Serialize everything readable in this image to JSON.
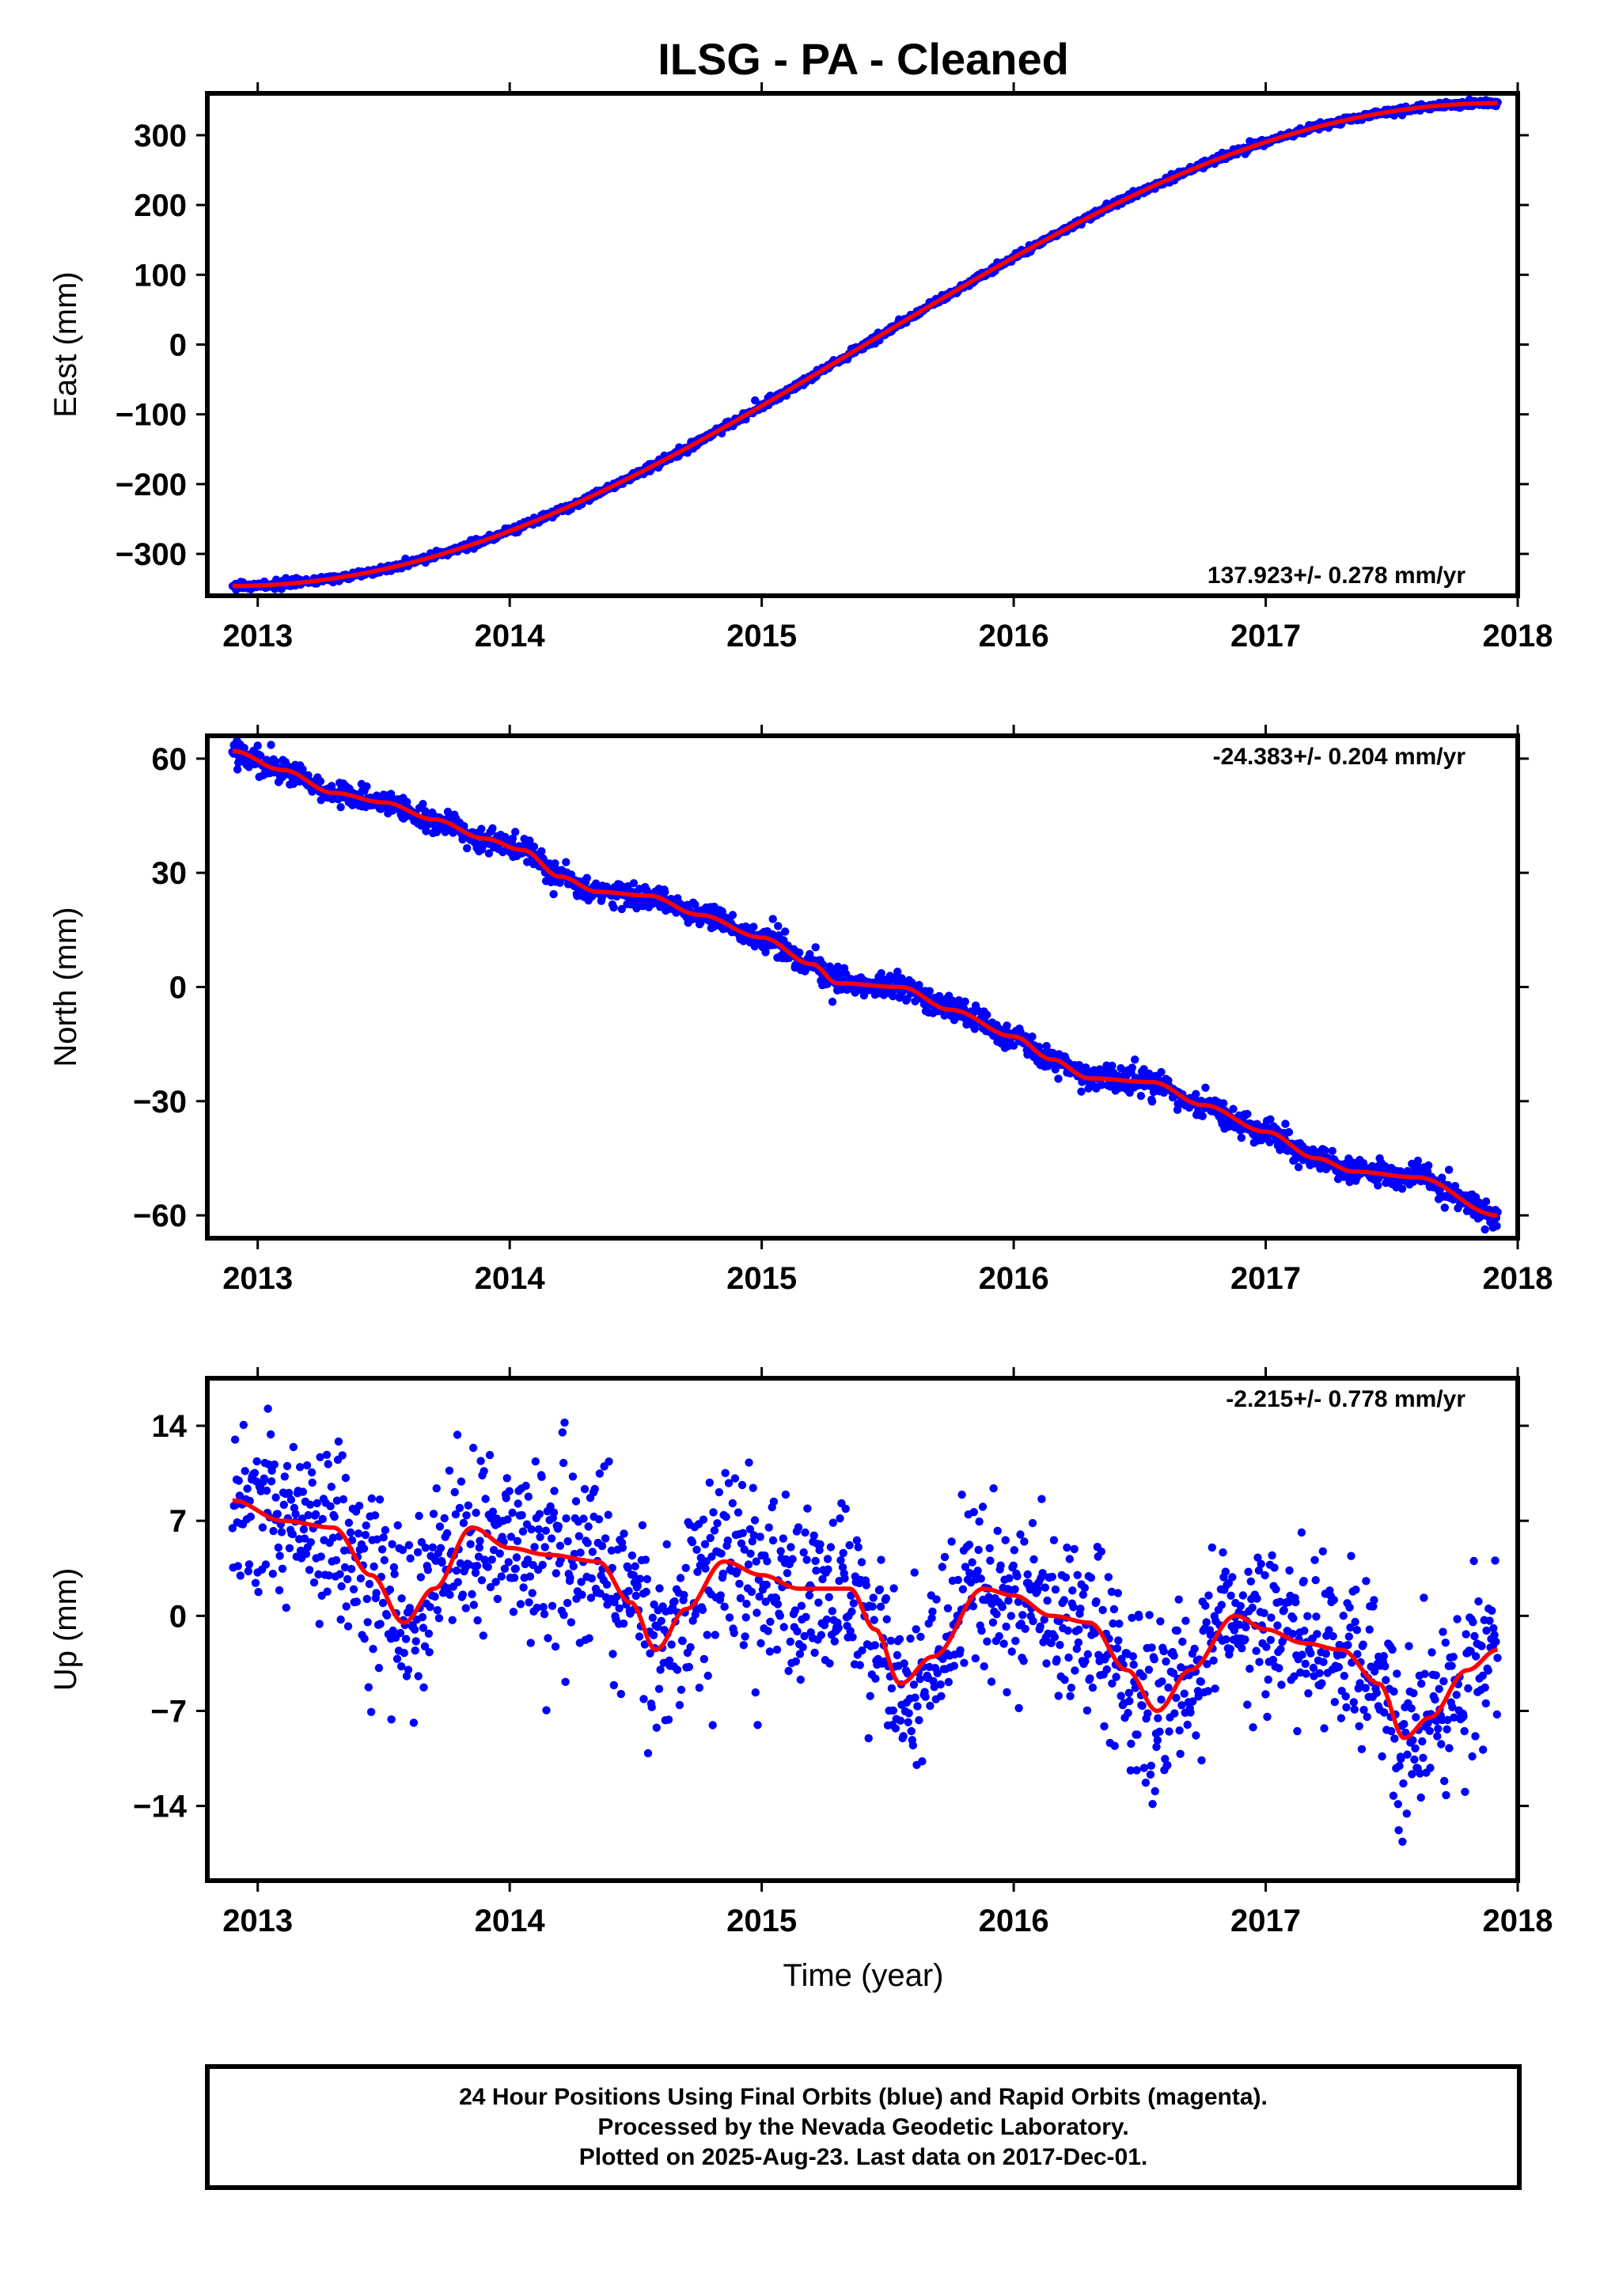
{
  "figure": {
    "title": "ILSG  - PA - Cleaned",
    "time_label": "Time (year)",
    "footer": [
      "24 Hour Positions Using Final Orbits (blue) and Rapid Orbits (magenta).",
      "Processed by the Nevada Geodetic Laboratory.",
      "Plotted on 2025-Aug-23. Last data on 2017-Dec-01."
    ],
    "colors": {
      "points": "#0000ff",
      "fit": "#ff0000",
      "frame": "#000000"
    }
  },
  "chart_data": [
    {
      "type": "scatter",
      "ylabel": "East (mm)",
      "rate_text": "137.923+/- 0.278 mm/yr",
      "xlim": [
        2012.8,
        2018.0
      ],
      "ylim": [
        -360,
        360
      ],
      "x_ticks": [
        2013,
        2014,
        2015,
        2016,
        2017,
        2018
      ],
      "y_ticks": [
        300,
        200,
        100,
        0,
        -100,
        -200,
        -300
      ],
      "y_tick_labels": [
        "300",
        "200",
        "100",
        "0",
        "−100",
        "−200",
        "−300"
      ],
      "series": [
        {
          "kind": "points",
          "x_start": 2012.9,
          "x_end": 2017.92,
          "count": 1700,
          "trend": [
            [
              2012.9,
              -346
            ],
            [
              2017.92,
              346
            ]
          ],
          "scatter_sd": 2.5
        },
        {
          "kind": "fit",
          "points": [
            [
              2012.9,
              -346
            ],
            [
              2017.92,
              346
            ]
          ]
        }
      ]
    },
    {
      "type": "scatter",
      "ylabel": "North (mm)",
      "rate_text": "-24.383+/- 0.204 mm/yr",
      "xlim": [
        2012.8,
        2018.0
      ],
      "ylim": [
        -66,
        66
      ],
      "x_ticks": [
        2013,
        2014,
        2015,
        2016,
        2017,
        2018
      ],
      "y_ticks": [
        60,
        30,
        0,
        -30,
        -60
      ],
      "y_tick_labels": [
        "60",
        "30",
        "0",
        "−30",
        "−60"
      ],
      "series": [
        {
          "kind": "points",
          "x_start": 2012.9,
          "x_end": 2017.92,
          "count": 1700,
          "trend": [
            [
              2012.9,
              62
            ],
            [
              2013.1,
              57
            ],
            [
              2013.3,
              51
            ],
            [
              2013.5,
              48.5
            ],
            [
              2013.7,
              44
            ],
            [
              2013.9,
              39
            ],
            [
              2014.05,
              36
            ],
            [
              2014.2,
              29
            ],
            [
              2014.35,
              25
            ],
            [
              2014.55,
              24
            ],
            [
              2014.75,
              19
            ],
            [
              2015.0,
              13
            ],
            [
              2015.2,
              6
            ],
            [
              2015.3,
              1
            ],
            [
              2015.55,
              0
            ],
            [
              2015.75,
              -6
            ],
            [
              2016.0,
              -13
            ],
            [
              2016.15,
              -19
            ],
            [
              2016.3,
              -24
            ],
            [
              2016.55,
              -25
            ],
            [
              2016.75,
              -31
            ],
            [
              2017.0,
              -38
            ],
            [
              2017.2,
              -45
            ],
            [
              2017.35,
              -48.5
            ],
            [
              2017.6,
              -50
            ],
            [
              2017.92,
              -60
            ]
          ],
          "scatter_sd": 1.6
        },
        {
          "kind": "fit",
          "points": [
            [
              2012.9,
              62
            ],
            [
              2013.1,
              57
            ],
            [
              2013.3,
              51
            ],
            [
              2013.5,
              48.5
            ],
            [
              2013.7,
              44
            ],
            [
              2013.9,
              39
            ],
            [
              2014.05,
              36
            ],
            [
              2014.2,
              29
            ],
            [
              2014.35,
              25
            ],
            [
              2014.55,
              24
            ],
            [
              2014.75,
              19
            ],
            [
              2015.0,
              13
            ],
            [
              2015.2,
              6
            ],
            [
              2015.3,
              1
            ],
            [
              2015.55,
              0
            ],
            [
              2015.75,
              -6
            ],
            [
              2016.0,
              -13
            ],
            [
              2016.15,
              -19
            ],
            [
              2016.3,
              -24
            ],
            [
              2016.55,
              -25
            ],
            [
              2016.75,
              -31
            ],
            [
              2017.0,
              -38
            ],
            [
              2017.2,
              -45
            ],
            [
              2017.35,
              -48.5
            ],
            [
              2017.6,
              -50
            ],
            [
              2017.92,
              -60
            ]
          ]
        }
      ]
    },
    {
      "type": "scatter",
      "ylabel": "Up (mm)",
      "rate_text": "-2.215+/- 0.778 mm/yr",
      "xlim": [
        2012.8,
        2018.0
      ],
      "ylim": [
        -19.5,
        17.5
      ],
      "x_ticks": [
        2013,
        2014,
        2015,
        2016,
        2017,
        2018
      ],
      "y_ticks": [
        14,
        7,
        0,
        -7,
        -14
      ],
      "y_tick_labels": [
        "14",
        "7",
        "0",
        "−7",
        "−14"
      ],
      "series": [
        {
          "kind": "points",
          "x_start": 2012.9,
          "x_end": 2017.92,
          "count": 1600,
          "trend": [
            [
              2012.9,
              8.5
            ],
            [
              2013.1,
              7
            ],
            [
              2013.3,
              6.5
            ],
            [
              2013.45,
              3
            ],
            [
              2013.58,
              -0.5
            ],
            [
              2013.7,
              2
            ],
            [
              2013.85,
              6.5
            ],
            [
              2014.0,
              5
            ],
            [
              2014.15,
              4.5
            ],
            [
              2014.35,
              4
            ],
            [
              2014.48,
              1
            ],
            [
              2014.58,
              -2.5
            ],
            [
              2014.7,
              0.5
            ],
            [
              2014.85,
              4
            ],
            [
              2015.0,
              3
            ],
            [
              2015.15,
              2
            ],
            [
              2015.35,
              2
            ],
            [
              2015.45,
              -1
            ],
            [
              2015.55,
              -5
            ],
            [
              2015.68,
              -3
            ],
            [
              2015.88,
              2
            ],
            [
              2016.0,
              1.5
            ],
            [
              2016.15,
              0
            ],
            [
              2016.3,
              -0.5
            ],
            [
              2016.45,
              -4
            ],
            [
              2016.57,
              -7
            ],
            [
              2016.7,
              -4
            ],
            [
              2016.88,
              0
            ],
            [
              2017.0,
              -1
            ],
            [
              2017.15,
              -2
            ],
            [
              2017.3,
              -2.5
            ],
            [
              2017.45,
              -5
            ],
            [
              2017.55,
              -9
            ],
            [
              2017.65,
              -7.5
            ],
            [
              2017.8,
              -4
            ],
            [
              2017.92,
              -2.5
            ]
          ],
          "scatter_sd": 3.3
        },
        {
          "kind": "fit",
          "points": [
            [
              2012.9,
              8.5
            ],
            [
              2013.1,
              7
            ],
            [
              2013.3,
              6.5
            ],
            [
              2013.45,
              3
            ],
            [
              2013.58,
              -0.5
            ],
            [
              2013.7,
              2
            ],
            [
              2013.85,
              6.5
            ],
            [
              2014.0,
              5
            ],
            [
              2014.15,
              4.5
            ],
            [
              2014.35,
              4
            ],
            [
              2014.48,
              1
            ],
            [
              2014.58,
              -2.5
            ],
            [
              2014.7,
              0.5
            ],
            [
              2014.85,
              4
            ],
            [
              2015.0,
              3
            ],
            [
              2015.15,
              2
            ],
            [
              2015.35,
              2
            ],
            [
              2015.45,
              -1
            ],
            [
              2015.55,
              -5
            ],
            [
              2015.68,
              -3
            ],
            [
              2015.88,
              2
            ],
            [
              2016.0,
              1.5
            ],
            [
              2016.15,
              0
            ],
            [
              2016.3,
              -0.5
            ],
            [
              2016.45,
              -4
            ],
            [
              2016.57,
              -7
            ],
            [
              2016.7,
              -4
            ],
            [
              2016.88,
              0
            ],
            [
              2017.0,
              -1
            ],
            [
              2017.15,
              -2
            ],
            [
              2017.3,
              -2.5
            ],
            [
              2017.45,
              -5
            ],
            [
              2017.55,
              -9
            ],
            [
              2017.65,
              -7.5
            ],
            [
              2017.8,
              -4
            ],
            [
              2017.92,
              -2.5
            ]
          ]
        }
      ]
    }
  ]
}
